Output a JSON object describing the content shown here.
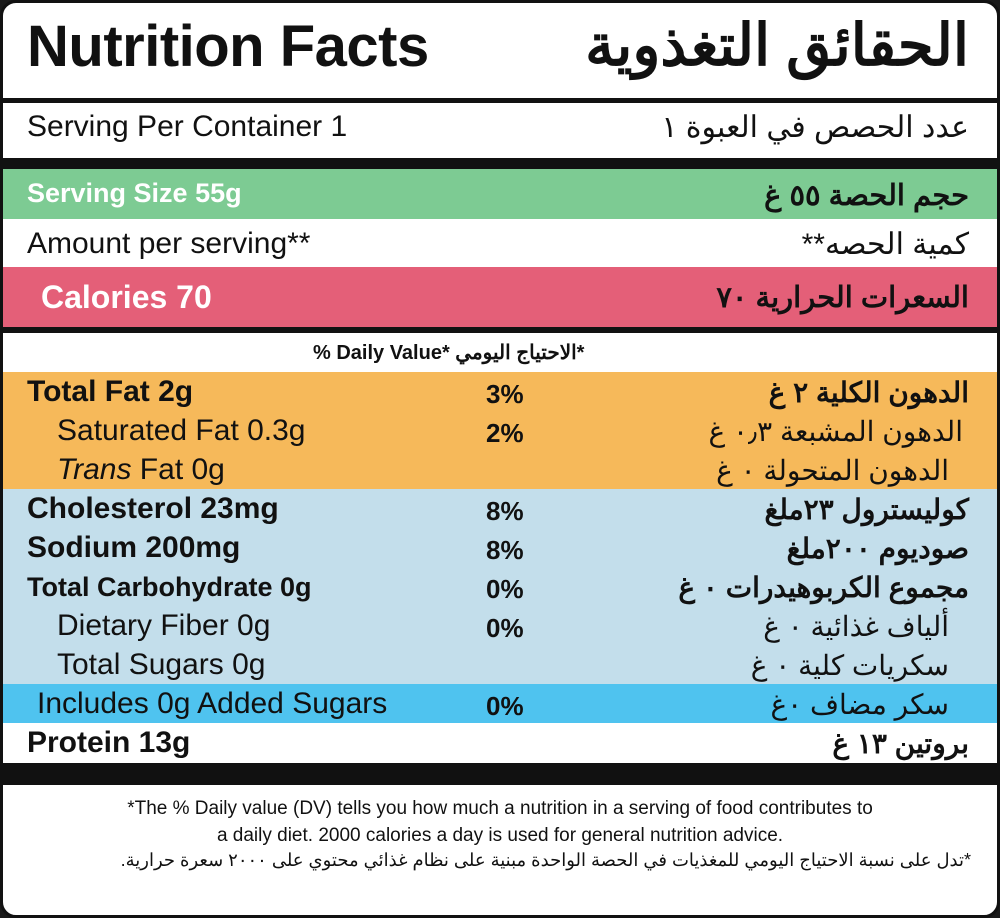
{
  "title": {
    "en": "Nutrition Facts",
    "ar": "الحقائق التغذوية"
  },
  "serving_per_container": {
    "en": "Serving Per Container 1",
    "ar": "عدد الحصص في العبوة ١"
  },
  "serving_size": {
    "en": "Serving Size 55g",
    "ar": "حجم الحصة ٥٥ غ"
  },
  "amount_per_serving": {
    "en": "Amount per serving**",
    "ar": "كمية الحصه**"
  },
  "calories": {
    "en": "Calories 70",
    "ar": "السعرات الحرارية ٧٠"
  },
  "daily_value_header": "% Daily Value* الاحتياج اليومي*",
  "nutrients": [
    {
      "en": "Total Fat 2g",
      "dv": "3%",
      "ar": "الدهون الكلية ٢ غ"
    },
    {
      "en": "Saturated Fat 0.3g",
      "dv": "2%",
      "ar": "الدهون المشبعة ٠٫٣ غ"
    },
    {
      "en": "Trans Fat 0g",
      "dv": "",
      "ar": "الدهون المتحولة ٠ غ"
    },
    {
      "en": "Cholesterol 23mg",
      "dv": "8%",
      "ar": "كوليسترول ٢٣ملغ"
    },
    {
      "en": "Sodium 200mg",
      "dv": "8%",
      "ar": "صوديوم ٢٠٠ملغ"
    },
    {
      "en": "Total Carbohydrate 0g",
      "dv": "0%",
      "ar": "مجموع الكربوهيدرات ٠ غ"
    },
    {
      "en": "Dietary Fiber 0g",
      "dv": "0%",
      "ar": "ألياف غذائية ٠ غ"
    },
    {
      "en": "Total Sugars 0g",
      "dv": "",
      "ar": "سكريات كلية ٠ غ"
    },
    {
      "en": "Includes 0g Added Sugars",
      "dv": "0%",
      "ar": "سكر مضاف ٠غ"
    },
    {
      "en": "Protein 13g",
      "dv": "",
      "ar": "بروتين ١٣ غ"
    }
  ],
  "trans_italic_word": "Trans",
  "trans_rest": " Fat 0g",
  "footnote": {
    "en_line1": "*The % Daily value (DV) tells you how much a nutrition in a serving of food contributes to",
    "en_line2": "a daily diet. 2000 calories a day is used for general nutrition advice.",
    "ar": "*تدل على نسبة الاحتياج اليومي للمغذيات في الحصة الواحدة مبنية على نظام غذائي محتوي على ٢٠٠٠ سعرة حرارية."
  },
  "colors": {
    "serving_size_band": "#7dcb93",
    "calories_band": "#e45f78",
    "fat_band": "#f6b95a",
    "cholesterol_band": "#c3deeb",
    "added_sugars_band": "#4fc3ef"
  }
}
